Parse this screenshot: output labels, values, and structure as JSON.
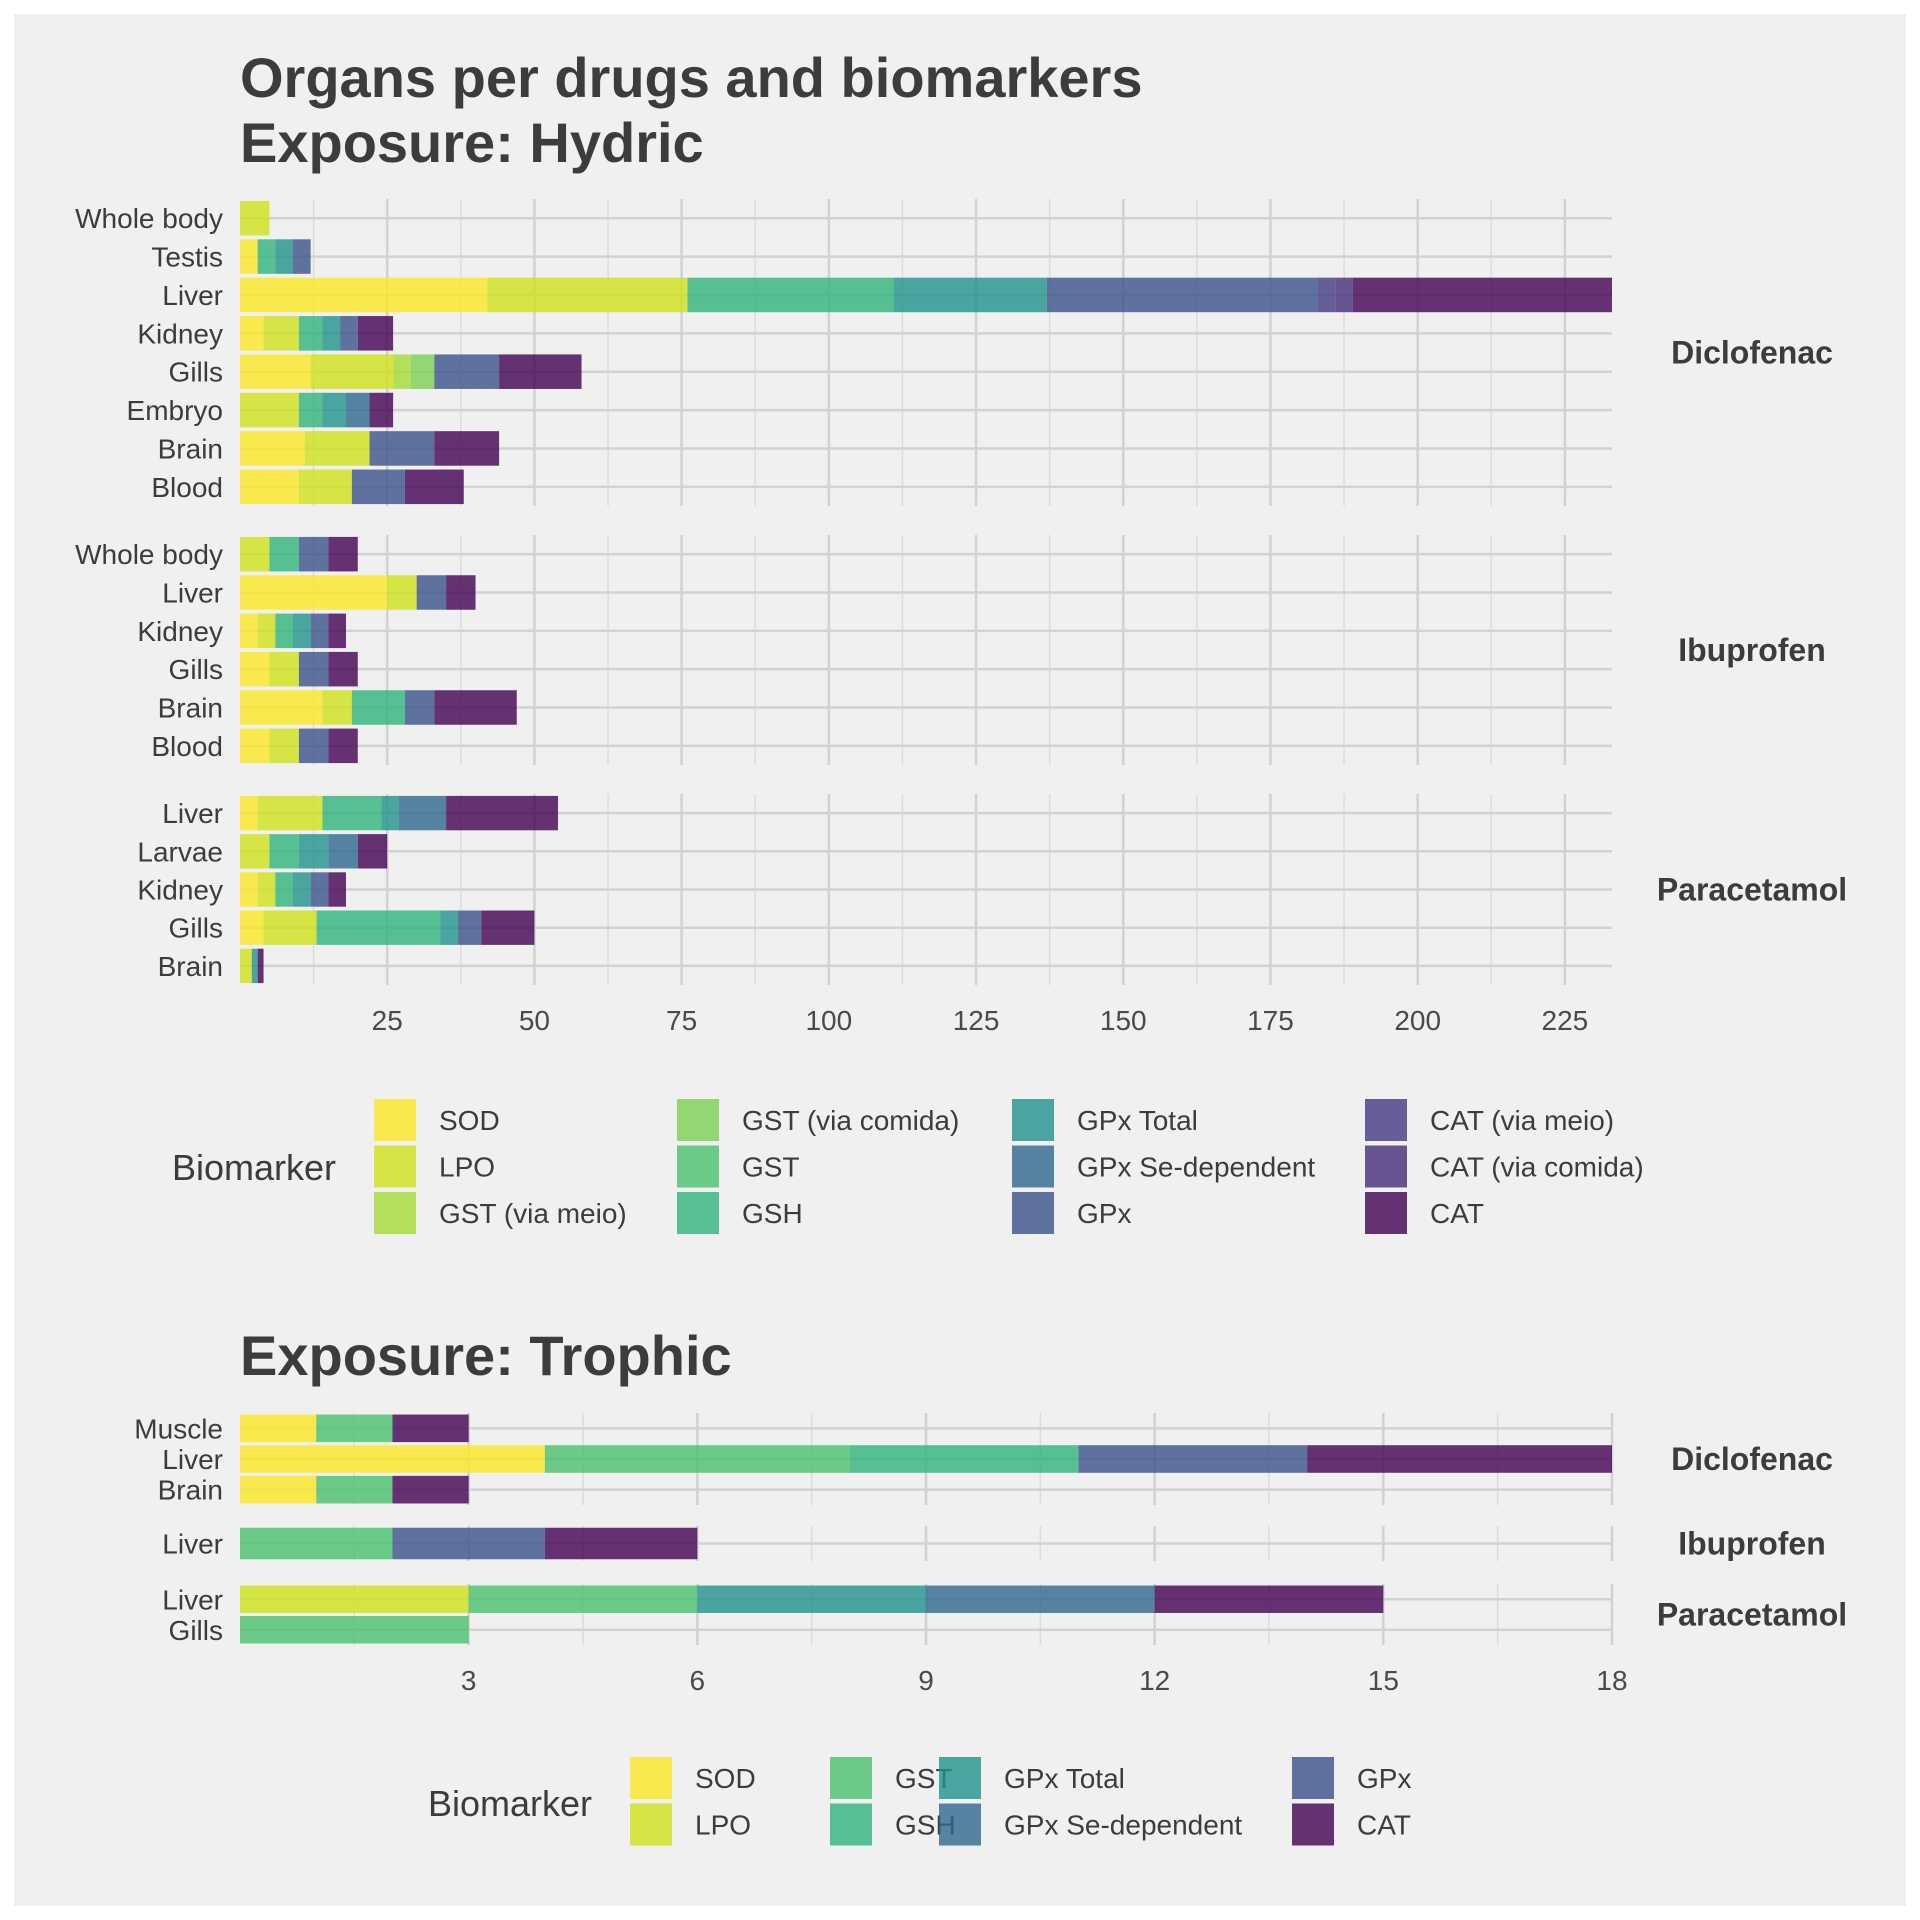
{
  "colors": {
    "SOD": "#fde725",
    "LPO": "#d0e11c",
    "GST (via meio)": "#a5db36",
    "GST (via comida)": "#7ad151",
    "GST": "#4ac16d",
    "GSH": "#2fb47c",
    "GPx Total": "#21918c",
    "GPx Se-dependent": "#31688e",
    "GPx": "#3b528b",
    "CAT (via meio)": "#443983",
    "CAT (via comida)": "#472d7b",
    "CAT": "#440154"
  },
  "chart_data": [
    {
      "type": "bar",
      "orientation": "horizontal",
      "stacked": true,
      "title": "Organs per drugs and biomarkers",
      "subtitle": "Exposure: Hydric",
      "xlim": [
        0,
        233
      ],
      "xticks": [
        "25",
        "50",
        "75",
        "100",
        "125",
        "150",
        "175",
        "200",
        "225"
      ],
      "xtick_values": [
        25,
        50,
        75,
        100,
        125,
        150,
        175,
        200,
        225
      ],
      "legend_title": "Biomarker",
      "legend_position": "bottom",
      "legend_items": [
        "SOD",
        "LPO",
        "GST (via meio)",
        "GST (via comida)",
        "GST",
        "GSH",
        "GPx Total",
        "GPx Se-dependent",
        "GPx",
        "CAT (via meio)",
        "CAT (via comida)",
        "CAT"
      ],
      "panels": [
        {
          "drug": "Diclofenac",
          "rows": [
            {
              "organ": "Whole body",
              "segments": [
                [
                  "LPO",
                  5
                ]
              ]
            },
            {
              "organ": "Testis",
              "segments": [
                [
                  "SOD",
                  3
                ],
                [
                  "GSH",
                  3
                ],
                [
                  "GPx Total",
                  3
                ],
                [
                  "GPx",
                  3
                ]
              ]
            },
            {
              "organ": "Liver",
              "segments": [
                [
                  "SOD",
                  42
                ],
                [
                  "LPO",
                  34
                ],
                [
                  "GSH",
                  35
                ],
                [
                  "GPx Total",
                  26
                ],
                [
                  "GPx",
                  46
                ],
                [
                  "CAT (via meio)",
                  3
                ],
                [
                  "CAT (via comida)",
                  3
                ],
                [
                  "CAT",
                  44
                ]
              ]
            },
            {
              "organ": "Kidney",
              "segments": [
                [
                  "SOD",
                  4
                ],
                [
                  "LPO",
                  6
                ],
                [
                  "GSH",
                  4
                ],
                [
                  "GPx Total",
                  3
                ],
                [
                  "GPx",
                  3
                ],
                [
                  "CAT",
                  6
                ]
              ]
            },
            {
              "organ": "Gills",
              "segments": [
                [
                  "SOD",
                  12
                ],
                [
                  "LPO",
                  14
                ],
                [
                  "GST (via meio)",
                  3
                ],
                [
                  "GST (via comida)",
                  4
                ],
                [
                  "GPx",
                  11
                ],
                [
                  "CAT",
                  14
                ]
              ]
            },
            {
              "organ": "Embryo",
              "segments": [
                [
                  "LPO",
                  10
                ],
                [
                  "GSH",
                  4
                ],
                [
                  "GPx Total",
                  4
                ],
                [
                  "GPx Se-dependent",
                  4
                ],
                [
                  "CAT",
                  4
                ]
              ]
            },
            {
              "organ": "Brain",
              "segments": [
                [
                  "SOD",
                  11
                ],
                [
                  "LPO",
                  11
                ],
                [
                  "GPx",
                  11
                ],
                [
                  "CAT",
                  11
                ]
              ]
            },
            {
              "organ": "Blood",
              "segments": [
                [
                  "SOD",
                  10
                ],
                [
                  "LPO",
                  9
                ],
                [
                  "GPx",
                  9
                ],
                [
                  "CAT",
                  10
                ]
              ]
            }
          ]
        },
        {
          "drug": "Ibuprofen",
          "rows": [
            {
              "organ": "Whole body",
              "segments": [
                [
                  "LPO",
                  5
                ],
                [
                  "GSH",
                  5
                ],
                [
                  "GPx",
                  5
                ],
                [
                  "CAT",
                  5
                ]
              ]
            },
            {
              "organ": "Liver",
              "segments": [
                [
                  "SOD",
                  25
                ],
                [
                  "LPO",
                  5
                ],
                [
                  "GPx",
                  5
                ],
                [
                  "CAT",
                  5
                ]
              ]
            },
            {
              "organ": "Kidney",
              "segments": [
                [
                  "SOD",
                  3
                ],
                [
                  "LPO",
                  3
                ],
                [
                  "GSH",
                  3
                ],
                [
                  "GPx Total",
                  3
                ],
                [
                  "GPx",
                  3
                ],
                [
                  "CAT",
                  3
                ]
              ]
            },
            {
              "organ": "Gills",
              "segments": [
                [
                  "SOD",
                  5
                ],
                [
                  "LPO",
                  5
                ],
                [
                  "GPx",
                  5
                ],
                [
                  "CAT",
                  5
                ]
              ]
            },
            {
              "organ": "Brain",
              "segments": [
                [
                  "SOD",
                  14
                ],
                [
                  "LPO",
                  5
                ],
                [
                  "GSH",
                  9
                ],
                [
                  "GPx",
                  5
                ],
                [
                  "CAT",
                  14
                ]
              ]
            },
            {
              "organ": "Blood",
              "segments": [
                [
                  "SOD",
                  5
                ],
                [
                  "LPO",
                  5
                ],
                [
                  "GPx",
                  5
                ],
                [
                  "CAT",
                  5
                ]
              ]
            }
          ]
        },
        {
          "drug": "Paracetamol",
          "rows": [
            {
              "organ": "Liver",
              "segments": [
                [
                  "SOD",
                  3
                ],
                [
                  "LPO",
                  11
                ],
                [
                  "GSH",
                  10
                ],
                [
                  "GPx Total",
                  3
                ],
                [
                  "GPx Se-dependent",
                  8
                ],
                [
                  "CAT",
                  19
                ]
              ]
            },
            {
              "organ": "Larvae",
              "segments": [
                [
                  "LPO",
                  5
                ],
                [
                  "GSH",
                  5
                ],
                [
                  "GPx Total",
                  5
                ],
                [
                  "GPx Se-dependent",
                  5
                ],
                [
                  "CAT",
                  5
                ]
              ]
            },
            {
              "organ": "Kidney",
              "segments": [
                [
                  "SOD",
                  3
                ],
                [
                  "LPO",
                  3
                ],
                [
                  "GSH",
                  3
                ],
                [
                  "GPx Total",
                  3
                ],
                [
                  "GPx",
                  3
                ],
                [
                  "CAT",
                  3
                ]
              ]
            },
            {
              "organ": "Gills",
              "segments": [
                [
                  "SOD",
                  4
                ],
                [
                  "LPO",
                  9
                ],
                [
                  "GSH",
                  21
                ],
                [
                  "GPx Total",
                  3
                ],
                [
                  "GPx",
                  4
                ],
                [
                  "CAT",
                  9
                ]
              ]
            },
            {
              "organ": "Brain",
              "segments": [
                [
                  "LPO",
                  2
                ],
                [
                  "GPx Total",
                  1
                ],
                [
                  "CAT",
                  1
                ]
              ]
            }
          ]
        }
      ]
    },
    {
      "type": "bar",
      "orientation": "horizontal",
      "stacked": true,
      "title": "Exposure: Trophic",
      "xlim": [
        0,
        18
      ],
      "xticks": [
        "3",
        "6",
        "9",
        "12",
        "15",
        "18"
      ],
      "xtick_values": [
        3,
        6,
        9,
        12,
        15,
        18
      ],
      "legend_title": "Biomarker",
      "legend_position": "bottom",
      "legend_items": [
        "SOD",
        "LPO",
        "GST",
        "GSH",
        "GPx Total",
        "GPx Se-dependent",
        "GPx",
        "CAT"
      ],
      "panels": [
        {
          "drug": "Diclofenac",
          "rows": [
            {
              "organ": "Muscle",
              "segments": [
                [
                  "SOD",
                  1
                ],
                [
                  "GST",
                  1
                ],
                [
                  "CAT",
                  1
                ]
              ]
            },
            {
              "organ": "Liver",
              "segments": [
                [
                  "SOD",
                  4
                ],
                [
                  "GST",
                  4
                ],
                [
                  "GSH",
                  3
                ],
                [
                  "GPx",
                  3
                ],
                [
                  "CAT",
                  4
                ]
              ]
            },
            {
              "organ": "Brain",
              "segments": [
                [
                  "SOD",
                  1
                ],
                [
                  "GST",
                  1
                ],
                [
                  "CAT",
                  1
                ]
              ]
            }
          ]
        },
        {
          "drug": "Ibuprofen",
          "rows": [
            {
              "organ": "Liver",
              "segments": [
                [
                  "GST",
                  2
                ],
                [
                  "GPx",
                  2
                ],
                [
                  "CAT",
                  2
                ]
              ]
            }
          ]
        },
        {
          "drug": "Paracetamol",
          "rows": [
            {
              "organ": "Liver",
              "segments": [
                [
                  "LPO",
                  3
                ],
                [
                  "GST",
                  3
                ],
                [
                  "GPx Total",
                  3
                ],
                [
                  "GPx Se-dependent",
                  3
                ],
                [
                  "CAT",
                  3
                ]
              ]
            },
            {
              "organ": "Gills",
              "segments": [
                [
                  "GST",
                  3
                ]
              ]
            }
          ]
        }
      ]
    }
  ]
}
